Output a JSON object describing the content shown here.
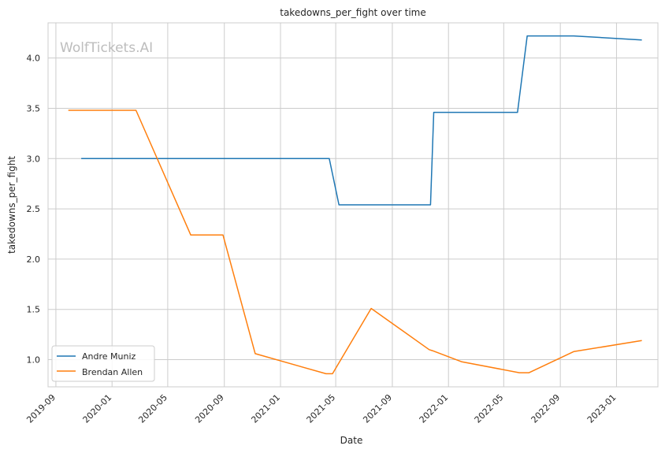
{
  "chart_data": {
    "type": "line",
    "title": "takedowns_per_fight over time",
    "xlabel": "Date",
    "ylabel": "takedowns_per_fight",
    "watermark": "WolfTickets.AI",
    "x_ticks": [
      "2019-09",
      "2020-01",
      "2020-05",
      "2020-09",
      "2021-01",
      "2021-05",
      "2021-09",
      "2022-01",
      "2022-05",
      "2022-09",
      "2023-01"
    ],
    "y_ticks": [
      "1.0",
      "1.5",
      "2.0",
      "2.5",
      "3.0",
      "3.5",
      "4.0"
    ],
    "xlim": [
      "2019-08-15",
      "2023-04-01"
    ],
    "ylim": [
      0.73,
      4.35
    ],
    "grid": true,
    "legend_position": "lower-left",
    "series": [
      {
        "name": "Andre Muniz",
        "color": "#1f77b4",
        "points": [
          [
            "2019-10-26",
            3.0
          ],
          [
            "2021-04-17",
            3.0
          ],
          [
            "2021-05-08",
            2.54
          ],
          [
            "2021-11-23",
            2.54
          ],
          [
            "2021-11-30",
            3.46
          ],
          [
            "2022-05-31",
            3.46
          ],
          [
            "2022-06-21",
            4.22
          ],
          [
            "2022-09-30",
            4.22
          ],
          [
            "2023-02-25",
            4.18
          ]
        ]
      },
      {
        "name": "Brendan Allen",
        "color": "#ff7f0e",
        "points": [
          [
            "2019-09-28",
            3.48
          ],
          [
            "2020-02-22",
            3.48
          ],
          [
            "2020-06-20",
            2.24
          ],
          [
            "2020-08-29",
            2.24
          ],
          [
            "2020-11-07",
            1.06
          ],
          [
            "2021-04-10",
            0.86
          ],
          [
            "2021-04-24",
            0.86
          ],
          [
            "2021-07-17",
            1.51
          ],
          [
            "2021-11-20",
            1.1
          ],
          [
            "2021-11-27",
            1.09
          ],
          [
            "2022-01-29",
            0.98
          ],
          [
            "2022-06-04",
            0.87
          ],
          [
            "2022-06-25",
            0.87
          ],
          [
            "2022-09-30",
            1.08
          ],
          [
            "2023-02-25",
            1.19
          ]
        ]
      }
    ]
  }
}
